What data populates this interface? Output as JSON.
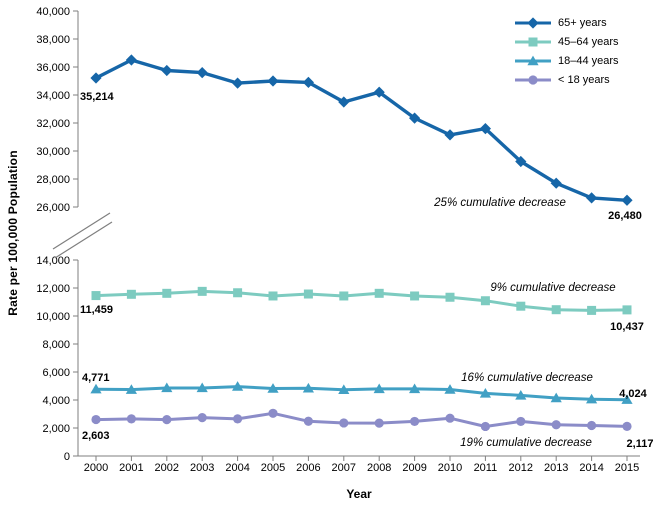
{
  "figure": {
    "y_axis_label": "Rate per 100,000  Population",
    "x_axis_label": "Year"
  },
  "colors": {
    "axis": "#7f7f7f",
    "text": "#000000",
    "series_65_plus": "#1666A8",
    "series_45_64": "#7DCBC0",
    "series_18_44": "#41A0C4",
    "series_under_18": "#8B8CC8"
  },
  "legend": {
    "items": [
      {
        "label": "65+ years",
        "marker": "diamond",
        "color": "#1666A8"
      },
      {
        "label": "45–64 years",
        "marker": "square",
        "color": "#7DCBC0"
      },
      {
        "label": "18–44 years",
        "marker": "triangle",
        "color": "#41A0C4"
      },
      {
        "label": "< 18 years",
        "marker": "circle",
        "color": "#8B8CC8"
      }
    ]
  },
  "chart_data": {
    "type": "line",
    "title": "",
    "xlabel": "Year",
    "ylabel": "Rate per 100,000 Population",
    "grid": false,
    "legend_position": "top-right",
    "axis_break": true,
    "upper_axis": {
      "range": [
        26000,
        40000
      ],
      "tick_step": 2000,
      "tick_labels": [
        "40,000",
        "38,000",
        "36,000",
        "34,000",
        "32,000",
        "30,000",
        "28,000",
        "26,000"
      ]
    },
    "lower_axis": {
      "range": [
        0,
        14000
      ],
      "tick_step": 2000,
      "tick_labels": [
        "14,000",
        "12,000",
        "10,000",
        "8,000",
        "6,000",
        "4,000",
        "2,000",
        "0"
      ]
    },
    "x": [
      2000,
      2001,
      2002,
      2003,
      2004,
      2005,
      2006,
      2007,
      2008,
      2009,
      2010,
      2011,
      2012,
      2013,
      2014,
      2015
    ],
    "series": [
      {
        "name": "65+ years",
        "marker": "diamond",
        "color": "#1666A8",
        "pane": "upper",
        "values": [
          35214,
          36500,
          35750,
          35600,
          34850,
          35000,
          34900,
          33500,
          34200,
          32350,
          31150,
          31600,
          29250,
          27700,
          26650,
          26480
        ],
        "first_point_label": "35,214",
        "last_point_label": "26,480",
        "annotation": "25% cumulative decrease"
      },
      {
        "name": "45–64 years",
        "marker": "square",
        "color": "#7DCBC0",
        "pane": "lower",
        "values": [
          11459,
          11550,
          11620,
          11760,
          11660,
          11430,
          11570,
          11430,
          11620,
          11430,
          11340,
          11090,
          10700,
          10450,
          10400,
          10437
        ],
        "first_point_label": "11,459",
        "last_point_label": "10,437",
        "annotation": "9% cumulative decrease"
      },
      {
        "name": "18–44 years",
        "marker": "triangle",
        "color": "#41A0C4",
        "pane": "lower",
        "values": [
          4771,
          4740,
          4860,
          4860,
          4960,
          4820,
          4840,
          4730,
          4790,
          4790,
          4750,
          4470,
          4330,
          4140,
          4060,
          4024
        ],
        "first_point_label": "4,771",
        "last_point_label": "4,024",
        "annotation": "16% cumulative decrease"
      },
      {
        "name": "< 18 years",
        "marker": "circle",
        "color": "#8B8CC8",
        "pane": "lower",
        "values": [
          2603,
          2650,
          2600,
          2740,
          2650,
          3050,
          2480,
          2360,
          2350,
          2470,
          2700,
          2110,
          2470,
          2230,
          2180,
          2117
        ],
        "first_point_label": "2,603",
        "last_point_label": "2,117",
        "annotation": "19% cumulative decrease"
      }
    ]
  }
}
